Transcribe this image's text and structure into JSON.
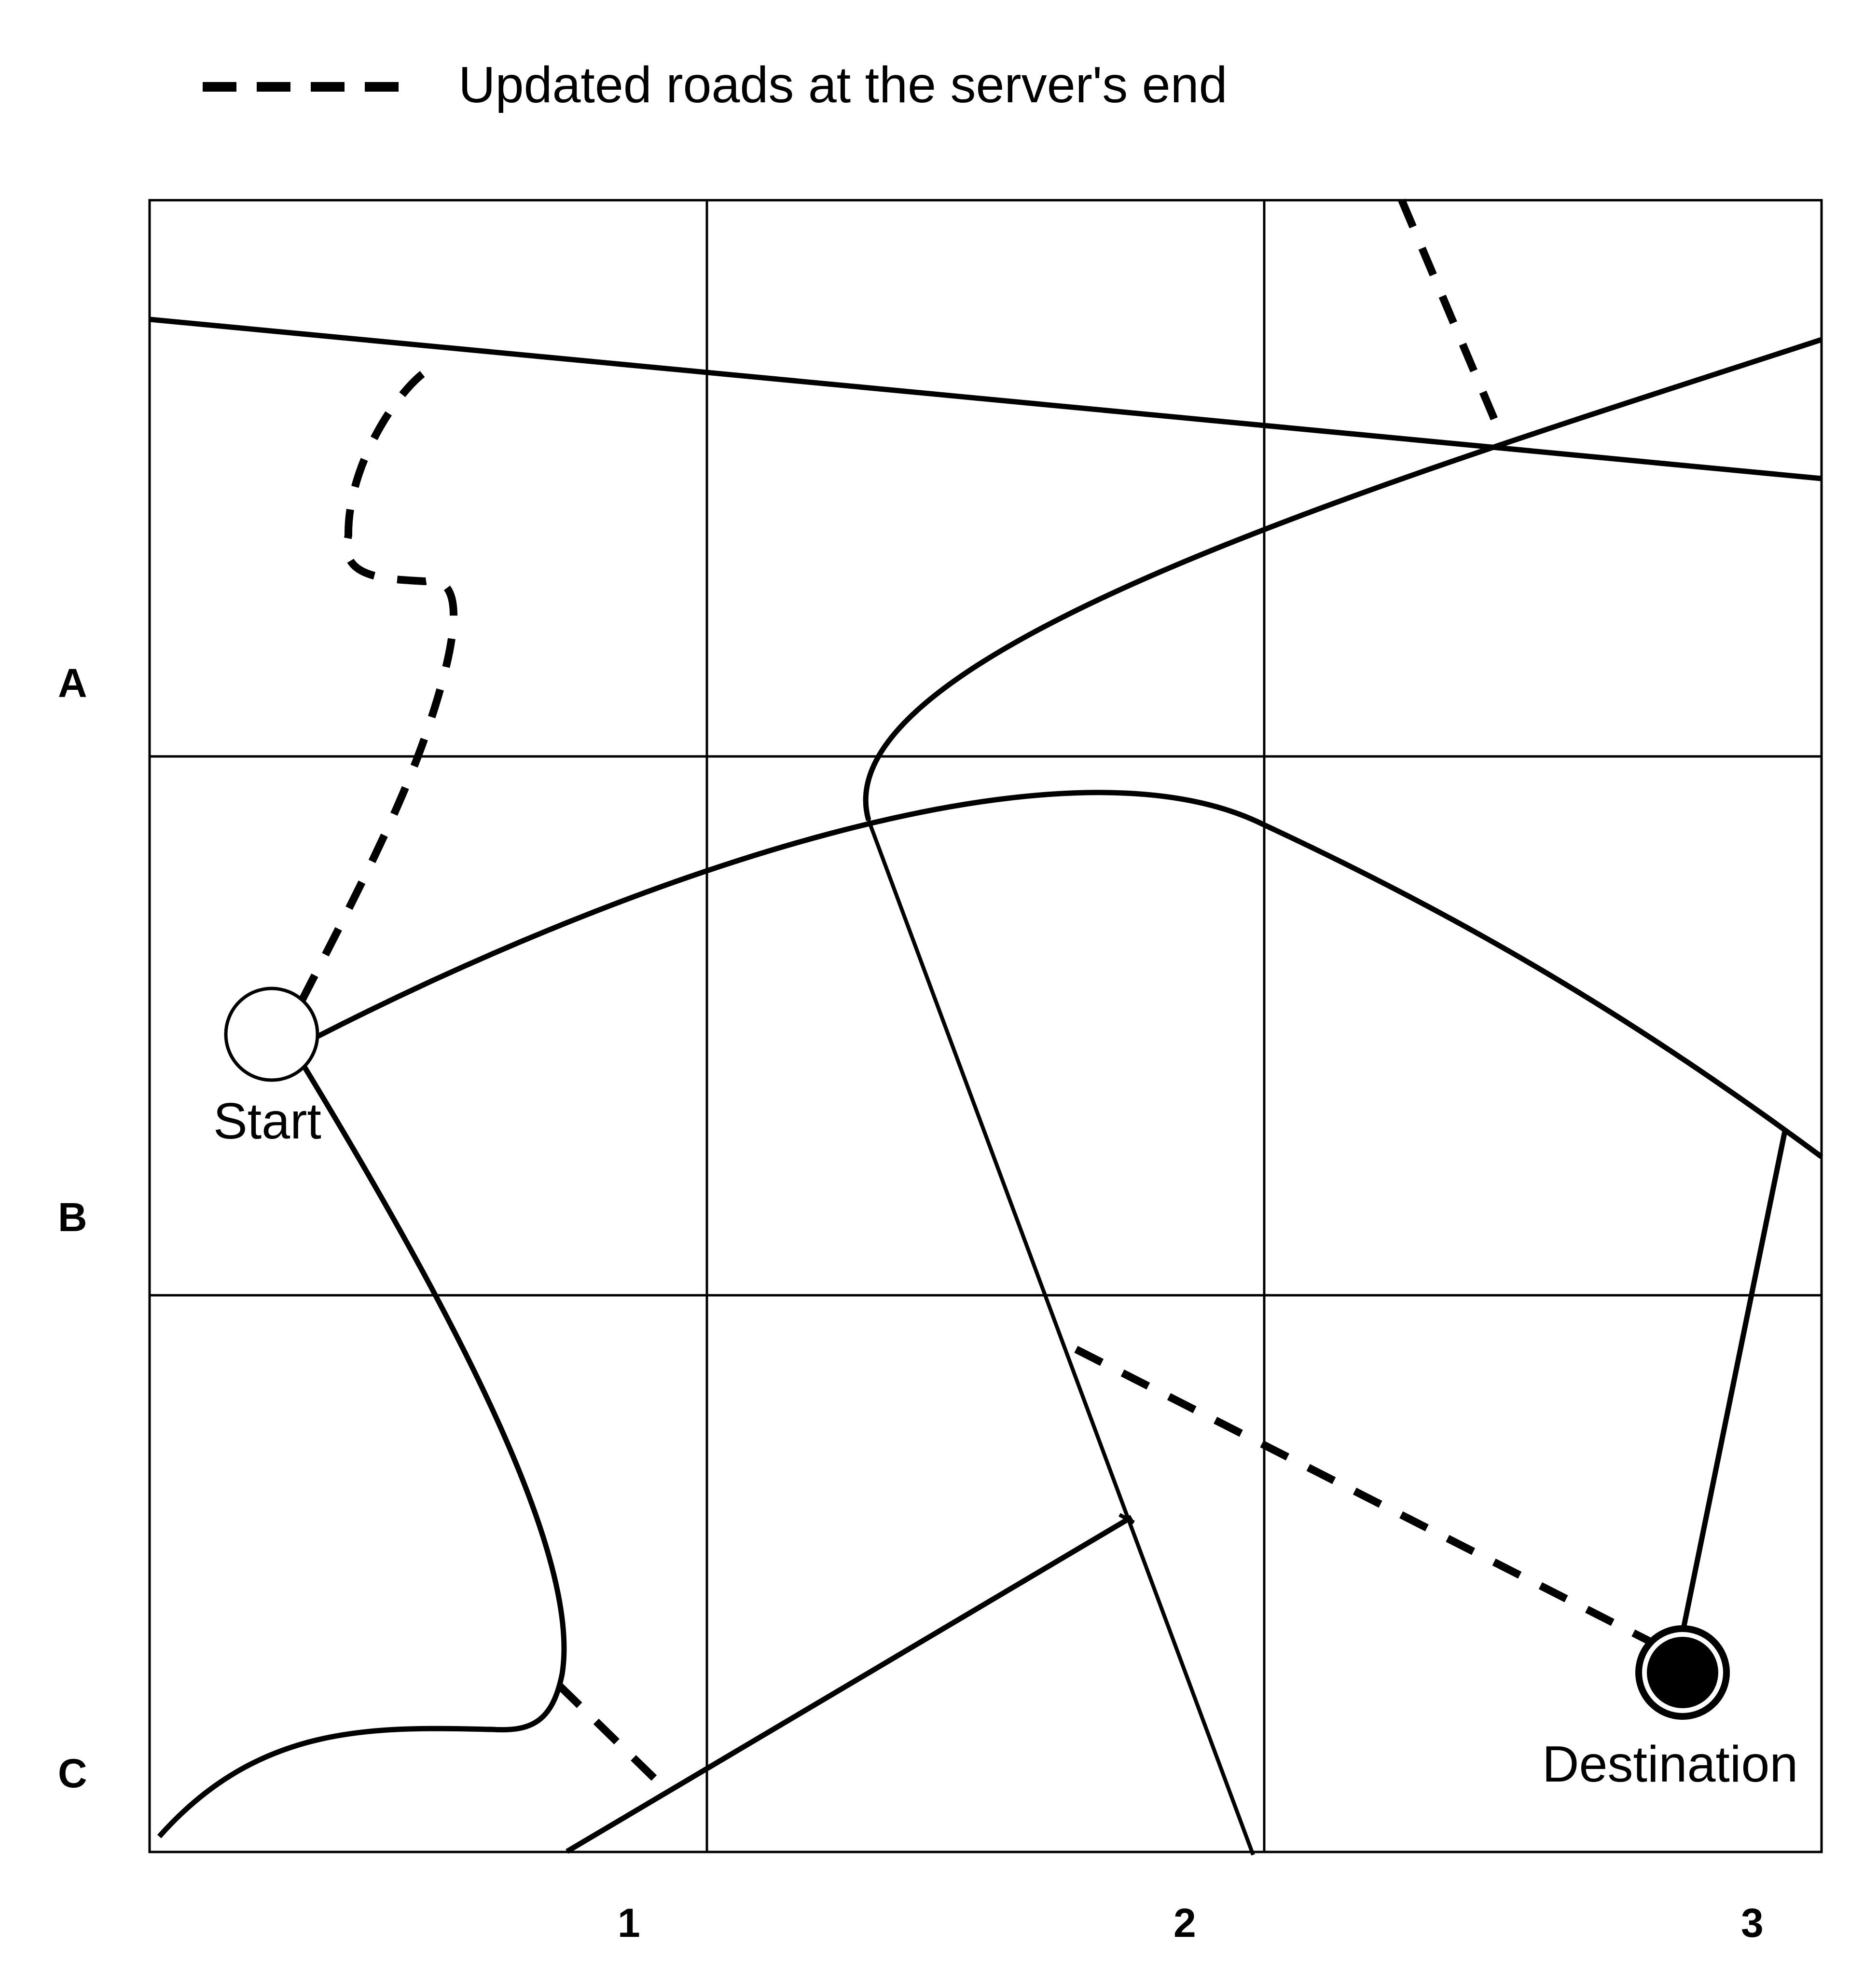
{
  "legend": {
    "label": "Updated roads at the server's end",
    "line_style": "dashed"
  },
  "grid": {
    "rows": [
      "A",
      "B",
      "C"
    ],
    "columns": [
      "1",
      "2",
      "3"
    ]
  },
  "markers": {
    "start": {
      "label": "Start",
      "fill": "#ffffff"
    },
    "destination": {
      "label": "Destination",
      "fill": "#000000"
    }
  },
  "colors": {
    "line": "#000000",
    "background": "#ffffff"
  }
}
